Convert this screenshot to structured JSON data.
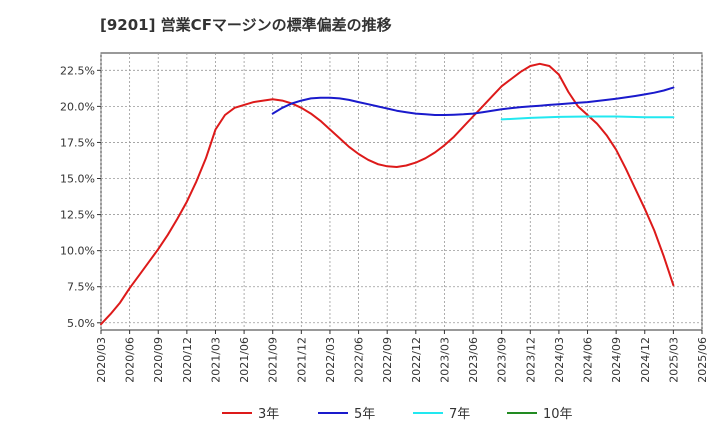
{
  "chart_data": {
    "type": "line",
    "title": "[9201]  営業CFマージンの標準偏差の推移",
    "xlabel": "",
    "ylabel": "",
    "ylim": [
      4.5,
      23.7
    ],
    "yticks": [
      "5.0%",
      "7.5%",
      "10.0%",
      "12.5%",
      "15.0%",
      "17.5%",
      "20.0%",
      "22.5%"
    ],
    "ytick_values": [
      5.0,
      7.5,
      10.0,
      12.5,
      15.0,
      17.5,
      20.0,
      22.5
    ],
    "x_start": "2020/03",
    "xticks": [
      "2020/03",
      "2020/06",
      "2020/09",
      "2020/12",
      "2021/03",
      "2021/06",
      "2021/09",
      "2021/12",
      "2022/03",
      "2022/06",
      "2022/09",
      "2022/12",
      "2023/03",
      "2023/06",
      "2023/09",
      "2023/12",
      "2024/03",
      "2024/06",
      "2024/09",
      "2024/12",
      "2025/03",
      "2025/06"
    ],
    "grid": true,
    "legend_position": "bottom",
    "series": [
      {
        "name": "3年",
        "color": "#dd1a1a",
        "x": [
          "2020/03",
          "2020/04",
          "2020/05",
          "2020/06",
          "2020/07",
          "2020/08",
          "2020/09",
          "2020/10",
          "2020/11",
          "2020/12",
          "2021/01",
          "2021/02",
          "2021/03",
          "2021/04",
          "2021/05",
          "2021/06",
          "2021/07",
          "2021/08",
          "2021/09",
          "2021/10",
          "2021/11",
          "2021/12",
          "2022/01",
          "2022/02",
          "2022/03",
          "2022/04",
          "2022/05",
          "2022/06",
          "2022/07",
          "2022/08",
          "2022/09",
          "2022/10",
          "2022/11",
          "2022/12",
          "2023/01",
          "2023/02",
          "2023/03",
          "2023/04",
          "2023/05",
          "2023/06",
          "2023/07",
          "2023/08",
          "2023/09",
          "2023/10",
          "2023/11",
          "2023/12",
          "2024/01",
          "2024/02",
          "2024/03",
          "2024/04",
          "2024/05",
          "2024/06",
          "2024/07",
          "2024/08",
          "2024/09",
          "2024/10",
          "2024/11",
          "2024/12",
          "2025/01",
          "2025/02",
          "2025/03"
        ],
        "values": [
          4.9,
          5.6,
          6.4,
          7.4,
          8.3,
          9.2,
          10.1,
          11.1,
          12.2,
          13.4,
          14.8,
          16.4,
          18.4,
          19.4,
          19.9,
          20.1,
          20.3,
          20.4,
          20.5,
          20.4,
          20.2,
          19.9,
          19.5,
          19.0,
          18.4,
          17.8,
          17.2,
          16.7,
          16.3,
          16.0,
          15.85,
          15.8,
          15.9,
          16.1,
          16.4,
          16.8,
          17.3,
          17.9,
          18.6,
          19.3,
          20.0,
          20.7,
          21.4,
          21.9,
          22.4,
          22.8,
          22.95,
          22.8,
          22.2,
          21.0,
          20.0,
          19.4,
          18.8,
          18.0,
          17.0,
          15.7,
          14.3,
          12.9,
          11.4,
          9.6,
          7.6
        ]
      },
      {
        "name": "5年",
        "color": "#1a1acc",
        "x": [
          "2021/09",
          "2021/10",
          "2021/11",
          "2021/12",
          "2022/01",
          "2022/02",
          "2022/03",
          "2022/04",
          "2022/05",
          "2022/06",
          "2022/07",
          "2022/08",
          "2022/09",
          "2022/10",
          "2022/11",
          "2022/12",
          "2023/01",
          "2023/02",
          "2023/03",
          "2023/04",
          "2023/05",
          "2023/06",
          "2023/07",
          "2023/08",
          "2023/09",
          "2023/10",
          "2023/11",
          "2023/12",
          "2024/01",
          "2024/02",
          "2024/03",
          "2024/04",
          "2024/05",
          "2024/06",
          "2024/07",
          "2024/08",
          "2024/09",
          "2024/10",
          "2024/11",
          "2024/12",
          "2025/01",
          "2025/02",
          "2025/03"
        ],
        "values": [
          19.5,
          19.9,
          20.2,
          20.4,
          20.55,
          20.6,
          20.6,
          20.55,
          20.45,
          20.3,
          20.15,
          20.0,
          19.85,
          19.7,
          19.6,
          19.5,
          19.45,
          19.4,
          19.4,
          19.42,
          19.45,
          19.5,
          19.6,
          19.7,
          19.8,
          19.88,
          19.95,
          20.0,
          20.05,
          20.1,
          20.15,
          20.2,
          20.25,
          20.3,
          20.37,
          20.45,
          20.53,
          20.62,
          20.72,
          20.83,
          20.95,
          21.1,
          21.3
        ]
      },
      {
        "name": "7年",
        "color": "#22e8f0",
        "x": [
          "2023/09",
          "2023/12",
          "2024/03",
          "2024/06",
          "2024/09",
          "2024/12",
          "2025/03"
        ],
        "values": [
          19.1,
          19.2,
          19.27,
          19.3,
          19.3,
          19.25,
          19.25
        ]
      },
      {
        "name": "10年",
        "color": "#228b22",
        "x": [],
        "values": []
      }
    ]
  }
}
